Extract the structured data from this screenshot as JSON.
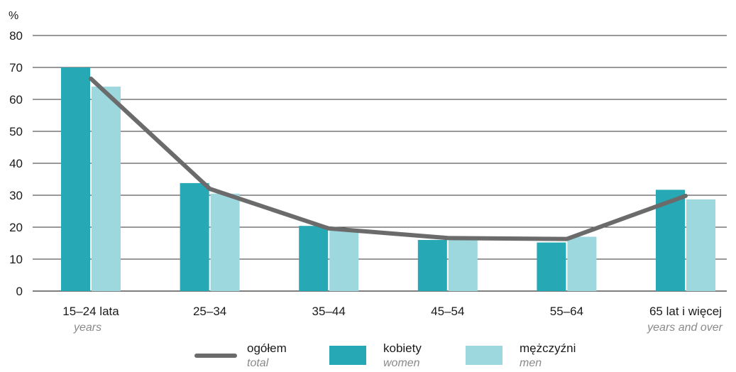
{
  "colors": {
    "women": "#26a8b5",
    "men": "#9dd8df",
    "total": "#6b6b6b",
    "grid": "#333333"
  },
  "legend": {
    "total": {
      "label": "ogółem",
      "sublabel": "total"
    },
    "women": {
      "label": "kobiety",
      "sublabel": "women"
    },
    "men": {
      "label": "mężczyźni",
      "sublabel": "men"
    }
  },
  "chart_data": {
    "type": "bar",
    "ylabel": "%",
    "ylim": [
      0,
      80
    ],
    "yticks": [
      0,
      10,
      20,
      30,
      40,
      50,
      60,
      70,
      80
    ],
    "grid": true,
    "legend_position": "bottom",
    "categories": [
      {
        "label": "15–24 lata",
        "sublabel": "years"
      },
      {
        "label": "25–34",
        "sublabel": ""
      },
      {
        "label": "35–44",
        "sublabel": ""
      },
      {
        "label": "45–54",
        "sublabel": ""
      },
      {
        "label": "55–64",
        "sublabel": ""
      },
      {
        "label": "65 lat i więcej",
        "sublabel": "years and over"
      }
    ],
    "series": [
      {
        "name": "kobiety",
        "type": "bar",
        "values": [
          70.0,
          33.8,
          20.4,
          16.0,
          15.2,
          31.7
        ]
      },
      {
        "name": "mężczyźni",
        "type": "bar",
        "values": [
          64.0,
          30.5,
          19.0,
          17.0,
          17.0,
          28.7
        ]
      },
      {
        "name": "ogółem",
        "type": "line",
        "values": [
          66.5,
          32.0,
          19.6,
          16.6,
          16.3,
          29.8
        ]
      }
    ]
  }
}
